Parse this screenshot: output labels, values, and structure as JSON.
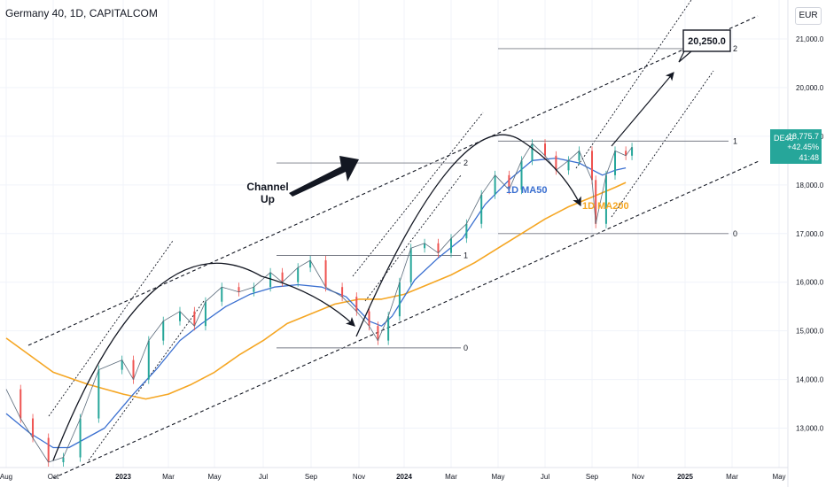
{
  "header": {
    "title": "Germany 40, 1D, CAPITALCOM"
  },
  "currency": "EUR",
  "price_tag": {
    "symbol": "DE40",
    "price": "18,775.7",
    "change": "+42.45%",
    "time": "41:48"
  },
  "colors": {
    "ma50": "#3a6fd0",
    "ma200": "#f5a623",
    "up": "#26a69a",
    "down": "#ef5350",
    "arrow": "#131722"
  },
  "chart_data": {
    "type": "line",
    "symbol": "DE40",
    "x_ticks": [
      "Aug",
      "Oct",
      "2023",
      "Mar",
      "May",
      "Jul",
      "Sep",
      "Nov",
      "2024",
      "Mar",
      "May",
      "Jul",
      "Sep",
      "Nov",
      "2025",
      "Mar",
      "May"
    ],
    "y_ticks": [
      13000,
      14000,
      15000,
      16000,
      17000,
      18000,
      19000,
      20000,
      21000
    ],
    "y_tick_labels": [
      "13,000.0",
      "14,000.0",
      "15,000.0",
      "16,000.0",
      "17,000.0",
      "18,000.0",
      "19,000.0",
      "20,000.0",
      "21,000.0"
    ],
    "ylim": [
      12100,
      21400
    ],
    "grid": true,
    "series": [
      {
        "name": "1D MA50",
        "x": [
          "2022-08-01",
          "2022-09-01",
          "2022-10-01",
          "2022-10-15",
          "2022-11-15",
          "2022-12-15",
          "2023-01-15",
          "2023-02-15",
          "2023-03-15",
          "2023-04-15",
          "2023-05-15",
          "2023-06-15",
          "2023-07-15",
          "2023-08-15",
          "2023-09-15",
          "2023-10-15",
          "2023-11-01",
          "2023-11-15",
          "2023-12-15",
          "2024-01-15",
          "2024-02-15",
          "2024-03-15",
          "2024-04-15",
          "2024-05-15",
          "2024-06-15",
          "2024-07-15",
          "2024-08-15",
          "2024-09-01",
          "2024-09-15"
        ],
        "values": [
          13300,
          12900,
          12600,
          12600,
          13000,
          13700,
          14200,
          14800,
          15150,
          15500,
          15750,
          15900,
          15950,
          15900,
          15700,
          15200,
          15100,
          15300,
          16050,
          16500,
          16900,
          17600,
          18100,
          18500,
          18550,
          18450,
          18200,
          18300,
          18350
        ]
      },
      {
        "name": "1D MA200",
        "x": [
          "2022-08-01",
          "2022-09-01",
          "2022-10-01",
          "2022-11-01",
          "2022-12-01",
          "2023-01-01",
          "2023-02-01",
          "2023-03-01",
          "2023-04-01",
          "2023-05-01",
          "2023-06-01",
          "2023-07-01",
          "2023-08-01",
          "2023-09-01",
          "2023-10-01",
          "2023-11-01",
          "2023-12-01",
          "2024-01-01",
          "2024-02-01",
          "2024-03-01",
          "2024-04-01",
          "2024-05-01",
          "2024-06-01",
          "2024-07-01",
          "2024-08-01",
          "2024-09-01",
          "2024-09-15"
        ],
        "values": [
          14850,
          14500,
          14150,
          13900,
          13700,
          13600,
          13700,
          13900,
          14150,
          14500,
          14800,
          15150,
          15350,
          15550,
          15650,
          15650,
          15750,
          15950,
          16150,
          16400,
          16700,
          17000,
          17300,
          17550,
          17750,
          17950,
          18050
        ]
      },
      {
        "name": "DE40 price",
        "x": [
          "2022-08-01",
          "2022-08-20",
          "2022-09-05",
          "2022-09-25",
          "2022-10-10",
          "2022-10-25",
          "2022-11-10",
          "2022-11-30",
          "2022-12-15",
          "2023-01-05",
          "2023-01-25",
          "2023-02-15",
          "2023-03-05",
          "2023-03-20",
          "2023-04-10",
          "2023-05-01",
          "2023-05-20",
          "2023-06-10",
          "2023-06-25",
          "2023-07-15",
          "2023-07-31",
          "2023-08-20",
          "2023-09-10",
          "2023-09-28",
          "2023-10-15",
          "2023-10-27",
          "2023-11-10",
          "2023-11-25",
          "2023-12-10",
          "2023-12-28",
          "2024-01-15",
          "2024-02-01",
          "2024-02-20",
          "2024-03-10",
          "2024-03-28",
          "2024-04-15",
          "2024-05-01",
          "2024-05-15",
          "2024-06-01",
          "2024-06-15",
          "2024-07-01",
          "2024-07-15",
          "2024-08-01",
          "2024-08-06",
          "2024-08-20",
          "2024-09-01",
          "2024-09-15",
          "2024-09-23"
        ],
        "values": [
          13800,
          13200,
          12800,
          12300,
          12400,
          13200,
          14200,
          14400,
          14000,
          14800,
          15200,
          15400,
          15100,
          15600,
          15900,
          15800,
          15900,
          16200,
          16000,
          16300,
          16450,
          15900,
          15700,
          15400,
          15100,
          14800,
          15300,
          16000,
          16700,
          16800,
          16600,
          16900,
          17200,
          17800,
          18200,
          17900,
          18500,
          18850,
          18600,
          18300,
          18500,
          18700,
          18100,
          17200,
          18200,
          18700,
          18600,
          18775.7
        ]
      }
    ],
    "annotations": [
      {
        "type": "text",
        "label": "Channel\nUp"
      },
      {
        "type": "callout",
        "label": "20,250.0",
        "value": 20250
      },
      {
        "type": "fib",
        "label": "0",
        "value": 14650
      },
      {
        "type": "fib",
        "label": "1",
        "value": 16550
      },
      {
        "type": "fib",
        "label": "2",
        "value": 18450
      },
      {
        "type": "fib",
        "label": "0",
        "value": 17000
      },
      {
        "type": "fib",
        "label": "1",
        "value": 18900
      },
      {
        "type": "fib",
        "label": "2",
        "value": 20800
      },
      {
        "type": "line_label",
        "label": "1D MA50"
      },
      {
        "type": "line_label",
        "label": "1D MA200"
      }
    ]
  }
}
